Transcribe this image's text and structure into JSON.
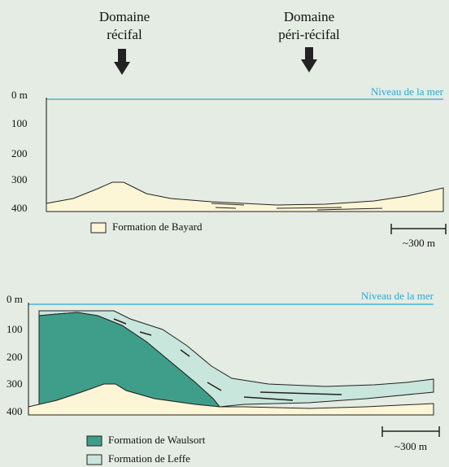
{
  "top_panel": {
    "domains": [
      {
        "lines": [
          "Domaine",
          "récifal"
        ]
      },
      {
        "lines": [
          "Domaine",
          "péri-récifal"
        ]
      }
    ],
    "sea_label": "Niveau de la mer",
    "depth_labels": [
      "0 m",
      "100",
      "200",
      "300",
      "400"
    ],
    "legend": [
      "Formation de Bayard"
    ],
    "scale": "~300 m"
  },
  "bottom_panel": {
    "sea_label": "Niveau de la mer",
    "depth_labels": [
      "0 m",
      "100",
      "200",
      "300",
      "400"
    ],
    "legend": [
      "Formation de Waulsort",
      "Formation de Leffe"
    ],
    "scale": "~300 m"
  }
}
